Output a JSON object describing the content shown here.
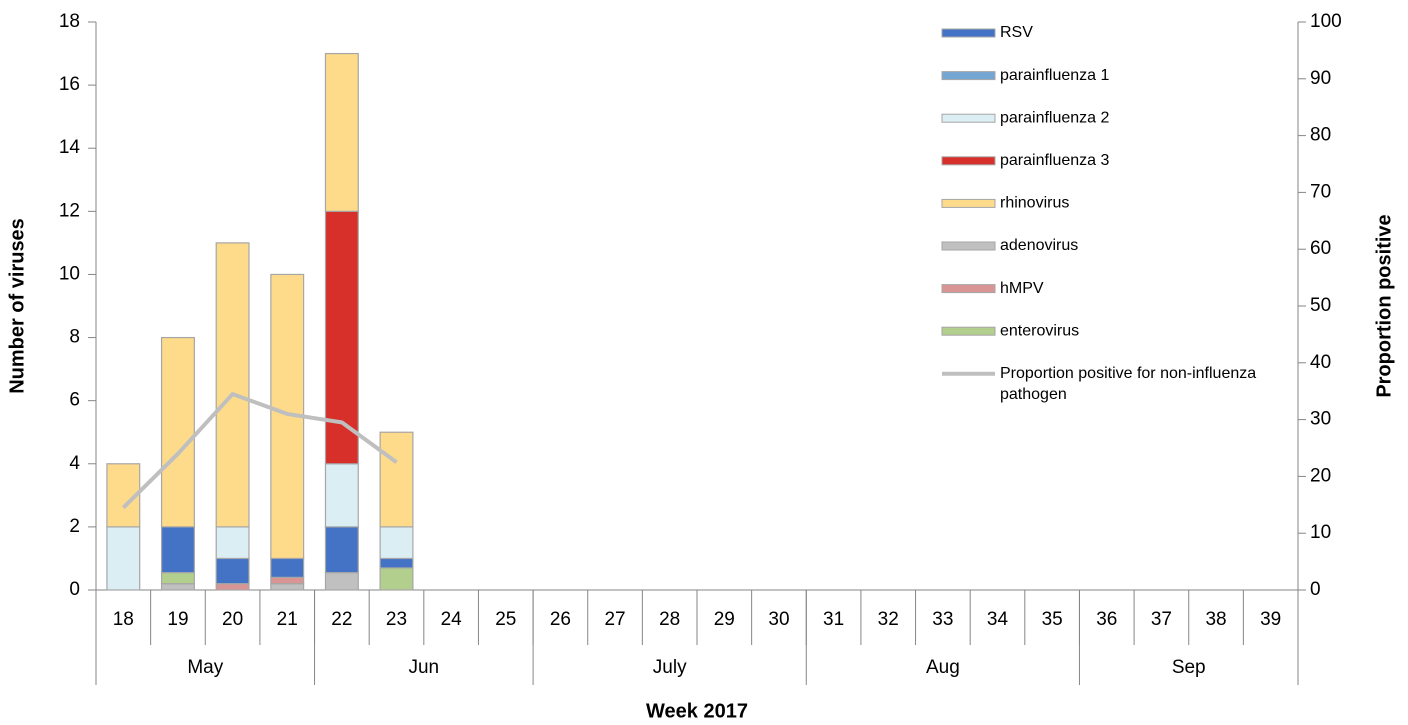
{
  "chart_data": {
    "type": "stacked_bar_line",
    "x_title": "Week 2017",
    "y_title": "Number of viruses",
    "y2_title": "Proportion positive",
    "categories": [
      "18",
      "19",
      "20",
      "21",
      "22",
      "23",
      "24",
      "25",
      "26",
      "27",
      "28",
      "29",
      "30",
      "31",
      "32",
      "33",
      "34",
      "35",
      "36",
      "37",
      "38",
      "39"
    ],
    "x_groups": [
      {
        "label": "May",
        "count": 4
      },
      {
        "label": "Jun",
        "count": 4
      },
      {
        "label": "July",
        "count": 5
      },
      {
        "label": "Aug",
        "count": 5
      },
      {
        "label": "Sep",
        "count": 4
      }
    ],
    "ylim": [
      0,
      18
    ],
    "yticks": [
      0,
      2,
      4,
      6,
      8,
      10,
      12,
      14,
      16,
      18
    ],
    "y2lim": [
      0,
      100
    ],
    "y2ticks": [
      0,
      10,
      20,
      30,
      40,
      50,
      60,
      70,
      80,
      90,
      100
    ],
    "series": [
      {
        "name": "adenovirus",
        "color": "#c0c0c0",
        "values": [
          null,
          0.2,
          null,
          0.2,
          0.55,
          null,
          null,
          null,
          null,
          null,
          null,
          null,
          null,
          null,
          null,
          null,
          null,
          null,
          null,
          null,
          null,
          null
        ]
      },
      {
        "name": "hMPV",
        "color": "#d99594",
        "values": [
          null,
          null,
          0.2,
          0.2,
          null,
          null,
          null,
          null,
          null,
          null,
          null,
          null,
          null,
          null,
          null,
          null,
          null,
          null,
          null,
          null,
          null,
          null
        ]
      },
      {
        "name": "enterovirus",
        "color": "#b3cf8e",
        "values": [
          null,
          0.35,
          null,
          null,
          null,
          0.7,
          null,
          null,
          null,
          null,
          null,
          null,
          null,
          null,
          null,
          null,
          null,
          null,
          null,
          null,
          null,
          null
        ]
      },
      {
        "name": "RSV",
        "color": "#4472c4",
        "values": [
          null,
          1.45,
          0.8,
          0.6,
          1.45,
          0.3,
          null,
          null,
          null,
          null,
          null,
          null,
          null,
          null,
          null,
          null,
          null,
          null,
          null,
          null,
          null,
          null
        ]
      },
      {
        "name": "parainfluenza 1",
        "color": "#75a5d3",
        "values": [
          null,
          null,
          null,
          null,
          null,
          null,
          null,
          null,
          null,
          null,
          null,
          null,
          null,
          null,
          null,
          null,
          null,
          null,
          null,
          null,
          null,
          null
        ]
      },
      {
        "name": "parainfluenza 2",
        "color": "#dbeef4",
        "values": [
          2,
          null,
          1,
          null,
          2,
          1,
          null,
          null,
          null,
          null,
          null,
          null,
          null,
          null,
          null,
          null,
          null,
          null,
          null,
          null,
          null,
          null
        ]
      },
      {
        "name": "parainfluenza 3",
        "color": "#d7302a",
        "values": [
          null,
          null,
          null,
          null,
          8,
          null,
          null,
          null,
          null,
          null,
          null,
          null,
          null,
          null,
          null,
          null,
          null,
          null,
          null,
          null,
          null,
          null
        ]
      },
      {
        "name": "rhinovirus",
        "color": "#fedb8b",
        "values": [
          2,
          6,
          9,
          9,
          5,
          3,
          null,
          null,
          null,
          null,
          null,
          null,
          null,
          null,
          null,
          null,
          null,
          null,
          null,
          null,
          null,
          null
        ]
      },
      {
        "name": "Proportion positive for non-influenza pathogen",
        "color": "#bfbfbf",
        "axis": "y2",
        "type": "line",
        "values": [
          14.5,
          24,
          34.5,
          31,
          29.5,
          22.5,
          null,
          null,
          null,
          null,
          null,
          null,
          null,
          null,
          null,
          null,
          null,
          null,
          null,
          null,
          null,
          null
        ]
      }
    ],
    "legend_order": [
      3,
      4,
      5,
      6,
      7,
      0,
      1,
      2,
      8
    ]
  }
}
